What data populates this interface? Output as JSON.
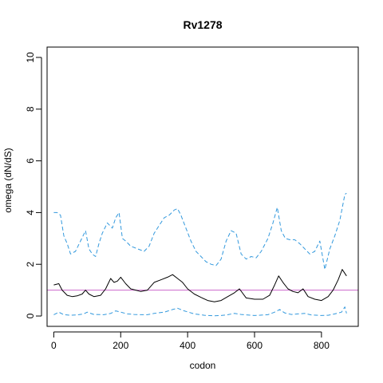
{
  "chart_data": {
    "type": "line",
    "title": "Rv1278",
    "xlabel": "codon",
    "ylabel": "omega (dN/dS)",
    "xlim": [
      -20,
      910
    ],
    "ylim": [
      -0.4,
      10.4
    ],
    "xticks": [
      0,
      200,
      400,
      600,
      800
    ],
    "yticks": [
      0,
      2,
      4,
      6,
      8,
      10
    ],
    "reference_line": {
      "y": 1,
      "color": "#cc66cc"
    },
    "grid": false,
    "legend": "none",
    "series": [
      {
        "role": "estimate",
        "color": "#000000",
        "style": "solid",
        "x": [
          0,
          15,
          25,
          40,
          55,
          70,
          85,
          95,
          105,
          120,
          140,
          155,
          170,
          180,
          190,
          200,
          215,
          230,
          245,
          260,
          280,
          300,
          320,
          340,
          355,
          370,
          385,
          400,
          420,
          440,
          460,
          480,
          500,
          520,
          540,
          555,
          575,
          600,
          625,
          645,
          660,
          672,
          685,
          700,
          715,
          730,
          745,
          760,
          780,
          800,
          820,
          835,
          850,
          862,
          875
        ],
        "y": [
          1.2,
          1.25,
          1.0,
          0.8,
          0.75,
          0.78,
          0.85,
          1.0,
          0.85,
          0.75,
          0.8,
          1.05,
          1.45,
          1.3,
          1.35,
          1.5,
          1.25,
          1.05,
          1.0,
          0.95,
          1.0,
          1.3,
          1.4,
          1.5,
          1.6,
          1.45,
          1.3,
          1.05,
          0.85,
          0.72,
          0.6,
          0.55,
          0.6,
          0.75,
          0.9,
          1.05,
          0.7,
          0.65,
          0.65,
          0.8,
          1.2,
          1.55,
          1.3,
          1.05,
          0.95,
          0.9,
          1.05,
          0.75,
          0.65,
          0.6,
          0.75,
          1.0,
          1.4,
          1.8,
          1.55
        ]
      },
      {
        "role": "upper-bound",
        "color": "#3399dd",
        "style": "dashed",
        "x": [
          0,
          10,
          20,
          30,
          40,
          50,
          65,
          80,
          95,
          105,
          115,
          125,
          135,
          145,
          160,
          175,
          185,
          195,
          205,
          215,
          230,
          250,
          270,
          285,
          300,
          315,
          330,
          345,
          360,
          370,
          380,
          395,
          410,
          425,
          440,
          455,
          470,
          485,
          500,
          515,
          530,
          545,
          560,
          575,
          590,
          605,
          620,
          640,
          655,
          668,
          680,
          692,
          705,
          720,
          735,
          750,
          765,
          780,
          795,
          810,
          825,
          840,
          855,
          870,
          875
        ],
        "y": [
          4.0,
          4.0,
          3.9,
          3.1,
          2.8,
          2.4,
          2.5,
          2.9,
          3.3,
          2.6,
          2.4,
          2.3,
          2.8,
          3.2,
          3.6,
          3.4,
          3.8,
          4.0,
          3.0,
          2.9,
          2.7,
          2.6,
          2.5,
          2.7,
          3.2,
          3.5,
          3.8,
          3.9,
          4.1,
          4.15,
          3.9,
          3.4,
          2.9,
          2.5,
          2.3,
          2.1,
          2.0,
          1.95,
          2.2,
          2.9,
          3.3,
          3.2,
          2.4,
          2.2,
          2.3,
          2.25,
          2.5,
          3.0,
          3.6,
          4.2,
          3.3,
          3.0,
          2.95,
          2.95,
          2.8,
          2.6,
          2.4,
          2.5,
          2.9,
          1.8,
          2.6,
          3.1,
          3.7,
          4.7,
          4.75
        ]
      },
      {
        "role": "lower-bound",
        "color": "#3399dd",
        "style": "dashed",
        "x": [
          0,
          15,
          30,
          50,
          70,
          90,
          100,
          120,
          150,
          170,
          185,
          200,
          220,
          240,
          260,
          280,
          300,
          330,
          355,
          370,
          390,
          420,
          450,
          480,
          500,
          520,
          540,
          560,
          600,
          640,
          660,
          675,
          690,
          710,
          730,
          750,
          770,
          800,
          820,
          840,
          860,
          870,
          875
        ],
        "y": [
          0.05,
          0.15,
          0.05,
          0.03,
          0.04,
          0.08,
          0.15,
          0.06,
          0.05,
          0.1,
          0.2,
          0.15,
          0.08,
          0.06,
          0.05,
          0.05,
          0.1,
          0.15,
          0.25,
          0.3,
          0.2,
          0.08,
          0.03,
          0.01,
          0.02,
          0.05,
          0.1,
          0.06,
          0.02,
          0.05,
          0.15,
          0.25,
          0.12,
          0.06,
          0.08,
          0.1,
          0.04,
          0.02,
          0.03,
          0.08,
          0.15,
          0.35,
          0.1
        ]
      }
    ]
  }
}
